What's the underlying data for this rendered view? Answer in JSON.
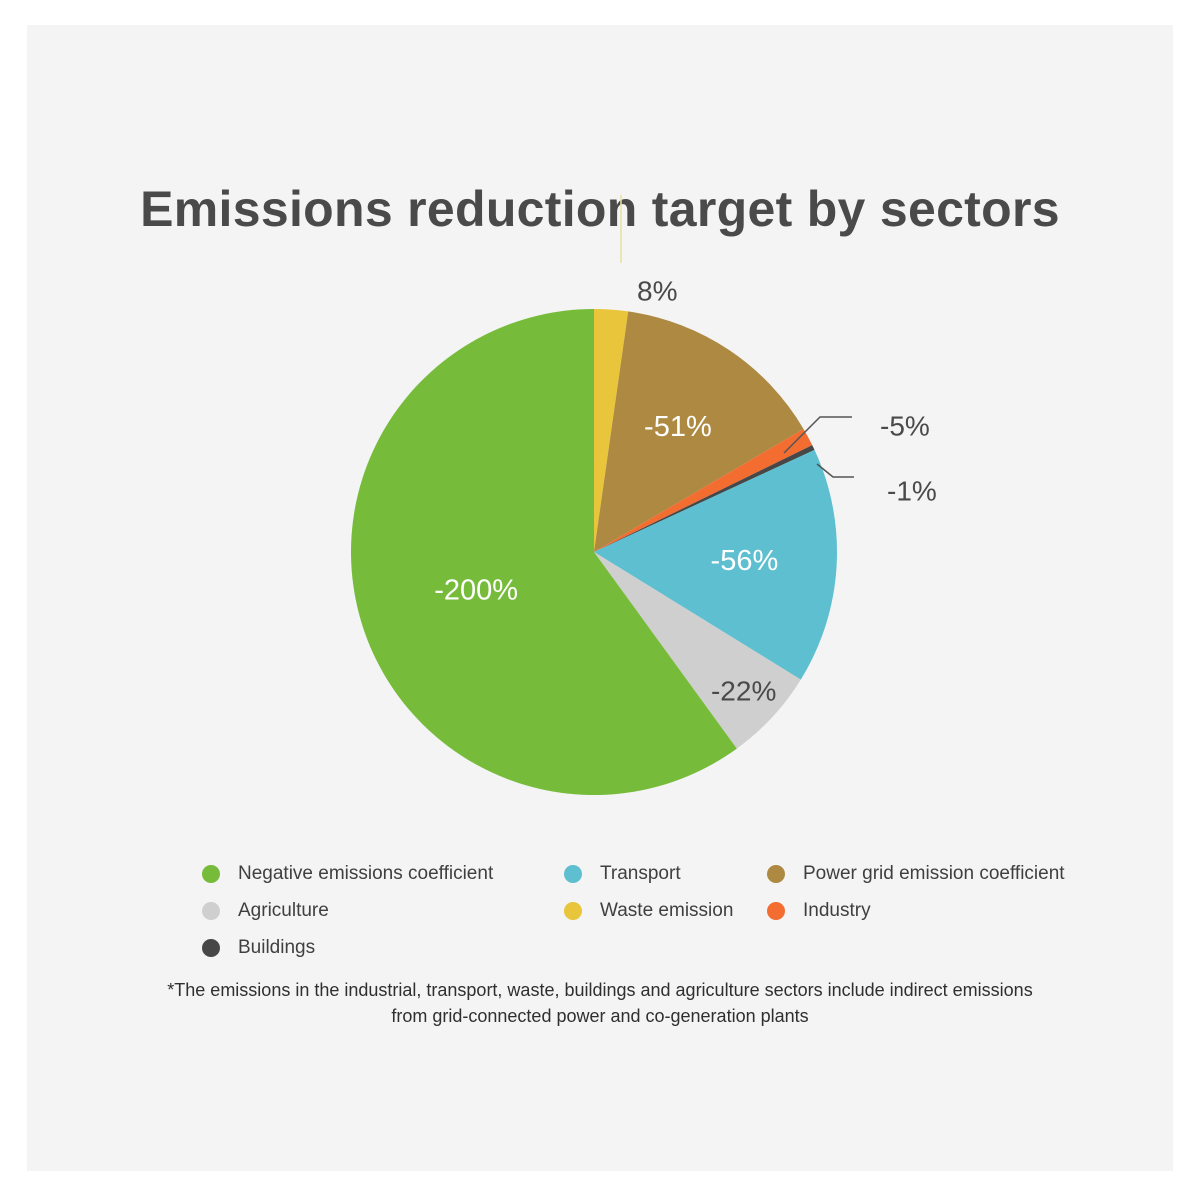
{
  "chart_data": {
    "type": "pie",
    "title": "Emissions reduction target by sectors",
    "slices": [
      {
        "name": "Waste emission",
        "label": "8%",
        "value": 8,
        "color": "#e8c53a",
        "share": 0.0225
      },
      {
        "name": "Power grid emission coefficient",
        "label": "-51%",
        "value": -51,
        "color": "#ae8941",
        "share": 0.143
      },
      {
        "name": "Industry",
        "label": "-5%",
        "value": -5,
        "color": "#f36c30",
        "share": 0.012
      },
      {
        "name": "Buildings",
        "label": "-1%",
        "value": -1,
        "color": "#474747",
        "share": 0.0035
      },
      {
        "name": "Transport",
        "label": "-56%",
        "value": -56,
        "color": "#5dbfcf",
        "share": 0.157
      },
      {
        "name": "Agriculture",
        "label": "-22%",
        "value": -22,
        "color": "#cfcfcf",
        "share": 0.062
      },
      {
        "name": "Negative emissions coefficient",
        "label": "-200%",
        "value": -200,
        "color": "#76bc3a",
        "share": 0.6
      }
    ],
    "legend_position": "bottom",
    "legend": [
      {
        "label": "Negative emissions coefficient",
        "color": "#76bc3a"
      },
      {
        "label": "Transport",
        "color": "#5dbfcf"
      },
      {
        "label": "Power grid emission coefficient",
        "color": "#ae8941"
      },
      {
        "label": "Agriculture",
        "color": "#cfcfcf"
      },
      {
        "label": "Waste emission",
        "color": "#e8c53a"
      },
      {
        "label": "Industry",
        "color": "#f36c30"
      },
      {
        "label": "Buildings",
        "color": "#474747"
      }
    ],
    "footnote_lines": [
      "*The emissions in the industrial, transport, waste, buildings and agriculture sectors include indirect emissions",
      "from grid-connected power and co-generation plants"
    ]
  }
}
